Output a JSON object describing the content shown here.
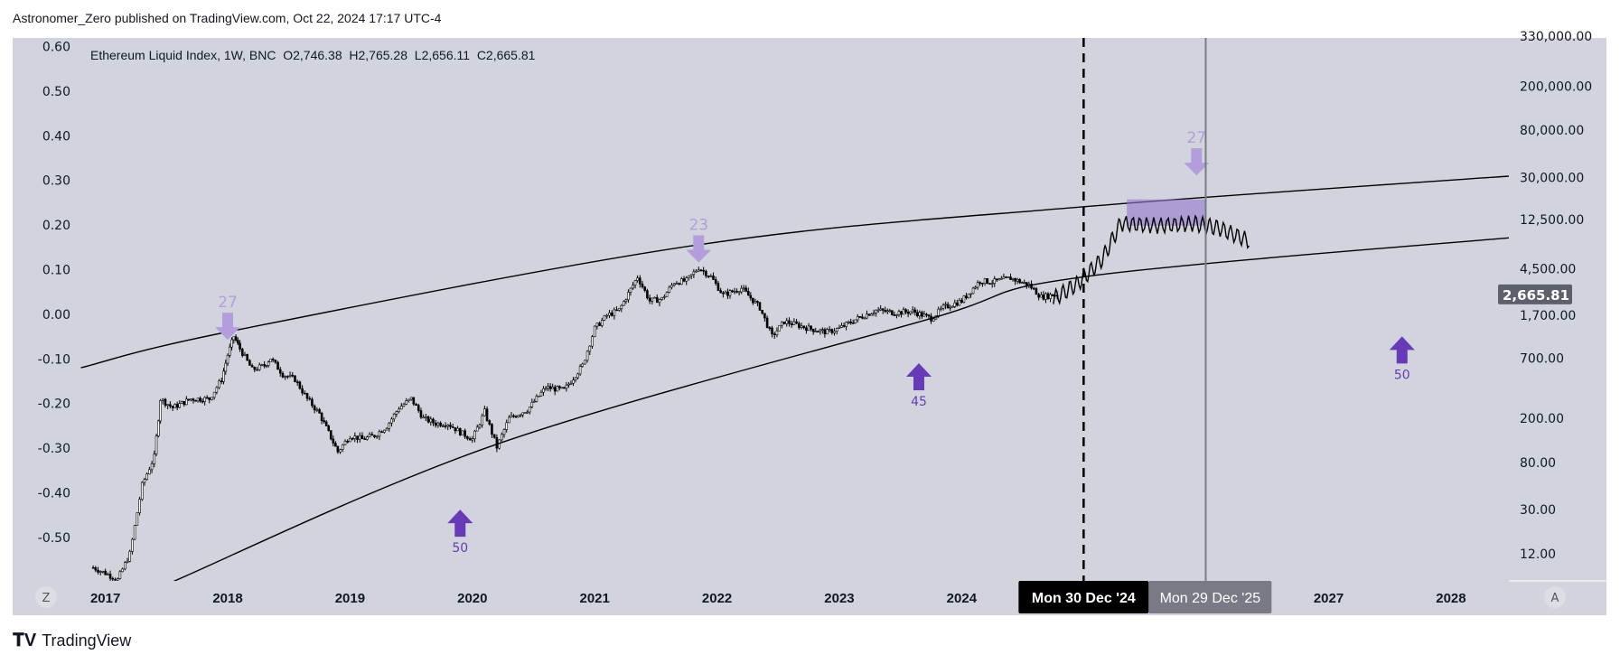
{
  "header": {
    "publish_line": "Astronomer_Zero published on TradingView.com, Oct 22, 2024 17:17 UTC-4"
  },
  "legend": {
    "symbol": "Ethereum Liquid Index, 1W, BNC",
    "open": "O2,746.38",
    "high": "H2,765.28",
    "low": "L2,656.11",
    "close": "C2,665.81"
  },
  "footer": {
    "brand": "TradingView"
  },
  "colors": {
    "background": "#d1d4dc",
    "candle": "#000000",
    "arrow_down": "#b39ddb",
    "arrow_up": "#673ab7",
    "box": "#9575cd",
    "last_price_bg": "#5d606b",
    "crosshair_label_bg": "#000000",
    "cursor_label_bg": "#787b86"
  },
  "chart_data": {
    "type": "candlestick",
    "scale": "log",
    "grid": false,
    "left_axis": {
      "ticks": [
        "0.60",
        "0.50",
        "0.40",
        "0.30",
        "0.20",
        "0.10",
        "0.00",
        "-0.10",
        "-0.20",
        "-0.30",
        "-0.40",
        "-0.50"
      ]
    },
    "right_axis": {
      "ticks": [
        "330,000.00",
        "200,000.00",
        "80,000.00",
        "30,000.00",
        "12,500.00",
        "4,500.00",
        "1,700.00",
        "700.00",
        "200.00",
        "80.00",
        "30.00",
        "12.00"
      ],
      "tick_values": [
        330000,
        200000,
        80000,
        30000,
        12500,
        4500,
        1700,
        700,
        200,
        80,
        30,
        12
      ],
      "last_price": "2,665.81"
    },
    "x_axis": {
      "ticks": [
        "2017",
        "2018",
        "2019",
        "2020",
        "2021",
        "2022",
        "2023",
        "2024",
        "2027",
        "2028"
      ],
      "tick_years": [
        2017,
        2018,
        2019,
        2020,
        2021,
        2022,
        2023,
        2024,
        2027,
        2028
      ],
      "vline_dashed_label": "Mon 30 Dec '24",
      "vline_solid_label": "Mon 29 Dec '25",
      "left_btn": "Z",
      "right_btn": "A"
    },
    "price_series": [
      [
        2016.9,
        9
      ],
      [
        2017.0,
        8
      ],
      [
        2017.1,
        7
      ],
      [
        2017.2,
        12
      ],
      [
        2017.3,
        50
      ],
      [
        2017.4,
        90
      ],
      [
        2017.45,
        300
      ],
      [
        2017.55,
        250
      ],
      [
        2017.7,
        300
      ],
      [
        2017.85,
        300
      ],
      [
        2017.95,
        450
      ],
      [
        2018.0,
        750
      ],
      [
        2018.05,
        1100
      ],
      [
        2018.1,
        850
      ],
      [
        2018.2,
        550
      ],
      [
        2018.3,
        600
      ],
      [
        2018.35,
        700
      ],
      [
        2018.45,
        500
      ],
      [
        2018.55,
        450
      ],
      [
        2018.65,
        300
      ],
      [
        2018.75,
        220
      ],
      [
        2018.9,
        100
      ],
      [
        2019.0,
        140
      ],
      [
        2019.1,
        130
      ],
      [
        2019.2,
        140
      ],
      [
        2019.3,
        170
      ],
      [
        2019.4,
        250
      ],
      [
        2019.5,
        300
      ],
      [
        2019.6,
        200
      ],
      [
        2019.7,
        180
      ],
      [
        2019.8,
        180
      ],
      [
        2019.9,
        150
      ],
      [
        2020.0,
        130
      ],
      [
        2020.1,
        230
      ],
      [
        2020.2,
        110
      ],
      [
        2020.3,
        200
      ],
      [
        2020.45,
        240
      ],
      [
        2020.6,
        380
      ],
      [
        2020.75,
        360
      ],
      [
        2020.9,
        600
      ],
      [
        2021.0,
        1300
      ],
      [
        2021.1,
        1700
      ],
      [
        2021.2,
        1900
      ],
      [
        2021.35,
        3800
      ],
      [
        2021.45,
        2300
      ],
      [
        2021.55,
        2400
      ],
      [
        2021.65,
        3400
      ],
      [
        2021.75,
        3500
      ],
      [
        2021.85,
        4600
      ],
      [
        2021.95,
        3800
      ],
      [
        2022.05,
        2600
      ],
      [
        2022.2,
        3000
      ],
      [
        2022.35,
        2000
      ],
      [
        2022.45,
        1100
      ],
      [
        2022.55,
        1500
      ],
      [
        2022.65,
        1400
      ],
      [
        2022.75,
        1300
      ],
      [
        2022.9,
        1200
      ],
      [
        2023.0,
        1300
      ],
      [
        2023.15,
        1600
      ],
      [
        2023.3,
        1900
      ],
      [
        2023.45,
        1800
      ],
      [
        2023.6,
        1850
      ],
      [
        2023.75,
        1600
      ],
      [
        2023.85,
        2000
      ],
      [
        2024.0,
        2300
      ],
      [
        2024.15,
        3500
      ],
      [
        2024.25,
        3400
      ],
      [
        2024.4,
        3700
      ],
      [
        2024.55,
        3200
      ],
      [
        2024.65,
        2500
      ],
      [
        2024.8,
        2665.81
      ]
    ],
    "projection": [
      [
        2024.75,
        2400
      ],
      [
        2024.95,
        3300
      ],
      [
        2025.15,
        5500
      ],
      [
        2025.3,
        11500
      ],
      [
        2025.6,
        11000
      ],
      [
        2025.9,
        11500
      ],
      [
        2026.1,
        10500
      ],
      [
        2026.35,
        8000
      ]
    ],
    "trendlines": [
      {
        "points": [
          [
            2016.8,
            573
          ],
          [
            2018.05,
            1240
          ],
          [
            2021.85,
            7400
          ],
          [
            2025.0,
            16300
          ],
          [
            2028.9,
            33200
          ]
        ]
      },
      {
        "points": [
          [
            2017.55,
            6.7
          ],
          [
            2020.2,
            117
          ],
          [
            2023.7,
            1540
          ],
          [
            2025.0,
            3800
          ],
          [
            2028.9,
            9350
          ]
        ]
      }
    ],
    "box": {
      "from": 2025.35,
      "to": 2026.0,
      "price_low": 11000,
      "price_high": 19000
    },
    "annotations": [
      {
        "label": "27",
        "dir": "down",
        "year": 2018.0,
        "price": 1800
      },
      {
        "label": "23",
        "dir": "down",
        "year": 2021.85,
        "price": 9000
      },
      {
        "label": "27",
        "dir": "down",
        "year": 2025.92,
        "price": 55000
      },
      {
        "label": "50",
        "dir": "up",
        "year": 2019.9,
        "price": 30
      },
      {
        "label": "45",
        "dir": "up",
        "year": 2023.65,
        "price": 630
      },
      {
        "label": "50",
        "dir": "up",
        "year": 2027.6,
        "price": 1100
      }
    ]
  }
}
